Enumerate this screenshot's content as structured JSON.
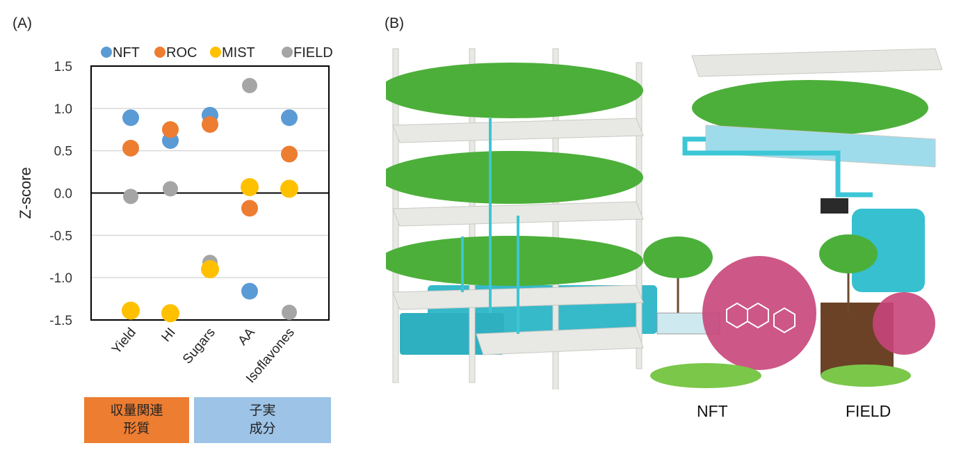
{
  "panels": {
    "a_label": "(A)",
    "b_label": "(B)"
  },
  "chart_data": {
    "type": "scatter",
    "ylabel": "Z-score",
    "xlabel": "",
    "ylim": [
      -1.5,
      1.5
    ],
    "yticks": [
      "1.5",
      "1.0",
      "0.5",
      "0.0",
      "-0.5",
      "-1.0",
      "-1.5"
    ],
    "ytick_values": [
      1.5,
      1.0,
      0.5,
      0.0,
      -0.5,
      -1.0,
      -1.5
    ],
    "grid": true,
    "legend_position": "top",
    "categories": [
      "Yield",
      "HI",
      "Sugars",
      "AA",
      "Isoflavones"
    ],
    "series": [
      {
        "name": "NFT",
        "color": "#5B9BD5",
        "values": [
          0.89,
          0.62,
          0.92,
          -1.16,
          0.89
        ]
      },
      {
        "name": "ROC",
        "color": "#ED7D31",
        "values": [
          0.53,
          0.75,
          0.81,
          -0.18,
          0.46
        ]
      },
      {
        "name": "MIST",
        "color": "#FFC000",
        "values": [
          -1.39,
          -1.42,
          -0.9,
          0.07,
          0.05
        ]
      },
      {
        "name": "FIELD",
        "color": "#A5A5A5",
        "values": [
          -0.04,
          0.05,
          -0.82,
          1.27,
          -1.41
        ]
      }
    ]
  },
  "groups": [
    {
      "label": "収量関連\n形質",
      "color": "#ED7D31"
    },
    {
      "label": "子実\n成分",
      "color": "#9DC3E6"
    }
  ],
  "illustration": {
    "nft_caption": "NFT",
    "field_caption": "FIELD",
    "accent_pink": "#C8457A",
    "water_color": "#3CC6D6"
  }
}
